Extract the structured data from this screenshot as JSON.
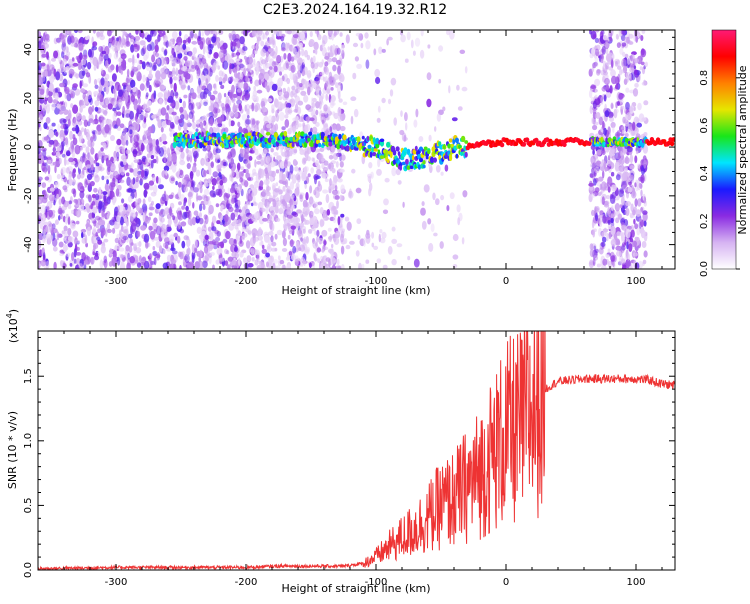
{
  "title": "C2E3.2024.164.19.32.R12",
  "chart_data": [
    {
      "type": "heatmap",
      "xlabel": "Height of straight line (km)",
      "ylabel": "Frequency (Hz)",
      "xlim": [
        -360,
        130
      ],
      "ylim": [
        -50,
        48
      ],
      "xticks": [
        -300,
        -200,
        -100,
        0,
        100
      ],
      "yticks": [
        -40,
        -20,
        0,
        20,
        40
      ],
      "grid": false,
      "colorbar": {
        "label": "Normalized spectral amplitude",
        "range": [
          0,
          1
        ],
        "ticks": [
          0.0,
          0.2,
          0.4,
          0.6,
          0.8
        ],
        "colors": [
          "#ffffff",
          "#d6b3f2",
          "#8a2be2",
          "#1a1aff",
          "#00e5ff",
          "#19e619",
          "#e6e600",
          "#ff8000",
          "#ff0000",
          "#ff1a75"
        ]
      },
      "features": {
        "noise_extent_x": [
          -360,
          -125
        ],
        "noise_secondary_extent_x": [
          65,
          108
        ],
        "band_start_x": -255,
        "band_center_y": [
          [
            -255,
            3
          ],
          [
            -200,
            3
          ],
          [
            -150,
            3
          ],
          [
            -125,
            2
          ],
          [
            -100,
            0
          ],
          [
            -80,
            -5
          ],
          [
            -60,
            -4
          ],
          [
            -40,
            0
          ],
          [
            -20,
            1
          ],
          [
            0,
            2
          ],
          [
            40,
            2
          ],
          [
            80,
            2
          ],
          [
            130,
            2
          ]
        ],
        "strong_band_x": [
          -30,
          65
        ],
        "strong_band_secondary_x": [
          108,
          130
        ]
      }
    },
    {
      "type": "line",
      "xlabel": "Height of straight line (km)",
      "ylabel": "SNR (10 * v/v)",
      "yscale_label": "(x10",
      "yscale_exponent": "4",
      "yscale_suffix": ")",
      "xlim": [
        -360,
        130
      ],
      "ylim": [
        0,
        18500
      ],
      "xticks": [
        -300,
        -200,
        -100,
        0,
        100
      ],
      "yticks": [
        0,
        5000,
        10000,
        15000
      ],
      "ytick_labels": [
        "0.0",
        "0.5",
        "1.0",
        "1.5"
      ],
      "grid": false,
      "series": [
        {
          "color": "#ee3333",
          "x": [
            -360,
            -300,
            -250,
            -200,
            -175,
            -150,
            -125,
            -110,
            -100,
            -90,
            -80,
            -70,
            -60,
            -50,
            -40,
            -30,
            -20,
            -10,
            0,
            10,
            20,
            30,
            40,
            60,
            80,
            90,
            100,
            110,
            120,
            130
          ],
          "y": [
            100,
            200,
            200,
            200,
            300,
            300,
            300,
            500,
            1000,
            1800,
            2500,
            3200,
            4000,
            5000,
            5500,
            6500,
            7500,
            9000,
            10500,
            11000,
            12500,
            14000,
            14600,
            14800,
            14800,
            14800,
            14800,
            14700,
            14400,
            14300
          ]
        }
      ]
    }
  ]
}
